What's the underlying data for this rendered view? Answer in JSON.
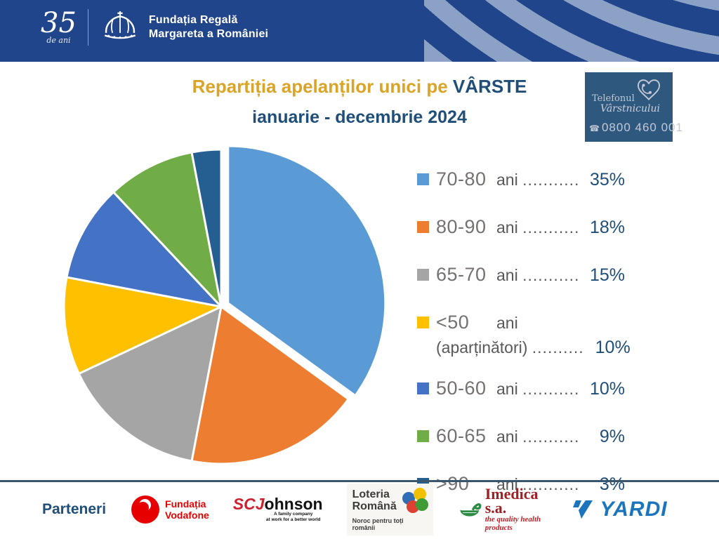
{
  "header": {
    "years_number": "35",
    "years_caption": "de ani",
    "org_line1": "Fundația Regală",
    "org_line2": "Margareta a României"
  },
  "title": {
    "main": "Repartiția apelanților unici pe ",
    "highlight": "VÂRSTE",
    "subtitle": "ianuarie - decembrie 2024"
  },
  "hotline": {
    "brand_line1": "Telefonul",
    "brand_line2": "Vârstnicului",
    "phone_icon": "☎",
    "phone": "0800 460 001"
  },
  "chart_data": {
    "type": "pie",
    "title": "Repartiția apelanților unici pe VÂRSTE",
    "subtitle": "ianuarie - decembrie 2024",
    "unit": "%",
    "start_angle_deg": 0,
    "direction": "clockwise",
    "exploded_slice": "70-80",
    "slices": [
      {
        "label": "70-80",
        "suffix": "ani",
        "value": 35,
        "color": "#5B9BD5"
      },
      {
        "label": "80-90",
        "suffix": "ani",
        "value": 18,
        "color": "#ED7D31"
      },
      {
        "label": "65-70",
        "suffix": "ani",
        "value": 15,
        "color": "#A5A5A5"
      },
      {
        "label": "<50",
        "suffix": "ani (aparținători)",
        "value": 10,
        "color": "#FFC000"
      },
      {
        "label": "50-60",
        "suffix": "ani",
        "value": 10,
        "color": "#4472C4"
      },
      {
        "label": "60-65",
        "suffix": "ani",
        "value": 9,
        "color": "#70AD47"
      },
      {
        "label": ">90",
        "suffix": "ani",
        "value": 3,
        "color": "#255E91"
      }
    ]
  },
  "legend": {
    "items": [
      {
        "range": "70-80",
        "unit": "ani",
        "dots": "..............",
        "value": "35%",
        "color": "#5B9BD5"
      },
      {
        "range": "80-90",
        "unit": "ani",
        "dots": "..............",
        "value": "18%",
        "color": "#ED7D31"
      },
      {
        "range": "65-70",
        "unit": "ani",
        "dots": "..............",
        "value": "15%",
        "color": "#A5A5A5"
      },
      {
        "range": "<50",
        "unit": "ani",
        "line2": "(aparținători)",
        "dots": "..........",
        "value": "10%",
        "color": "#FFC000"
      },
      {
        "range": "50-60",
        "unit": "ani",
        "dots": ".............",
        "value": "10%",
        "color": "#4472C4"
      },
      {
        "range": "60-65",
        "unit": "ani",
        "dots": "..............",
        "value": "9%",
        "color": "#70AD47"
      },
      {
        "range": ">90",
        "unit": "ani",
        "dots": "..............",
        "value": "3%",
        "color": "#255E91"
      }
    ]
  },
  "partners": {
    "label": "Parteneri",
    "vodafone": {
      "line1": "Fundația",
      "line2": "Vodafone"
    },
    "scjohnson": {
      "prefix": "SCJ",
      "rest": "ohnson",
      "tag1": "A family company",
      "tag2": "at work for a better world"
    },
    "loteria": {
      "line1": "Loteria",
      "line2": "Română",
      "tagline": "Noroc pentru toți românii",
      "ball_colors": {
        "blue": "#2F6DB5",
        "yellow": "#F3C000",
        "red": "#DD4132",
        "green": "#3E9B35"
      }
    },
    "imedica": {
      "name": "Imedica s.a.",
      "tagline": "the quality health products"
    },
    "yardi": {
      "name": "YARDI"
    }
  },
  "colors": {
    "header_bg": "#20458A",
    "header_stripe": "#8CA1C6",
    "title_gold": "#D9A428",
    "navy_text": "#1F4E79",
    "hotline_bg": "#2F587F",
    "divider": "#3A566E",
    "legend_label_gray": "#767171",
    "legend_text_gray": "#595959"
  }
}
